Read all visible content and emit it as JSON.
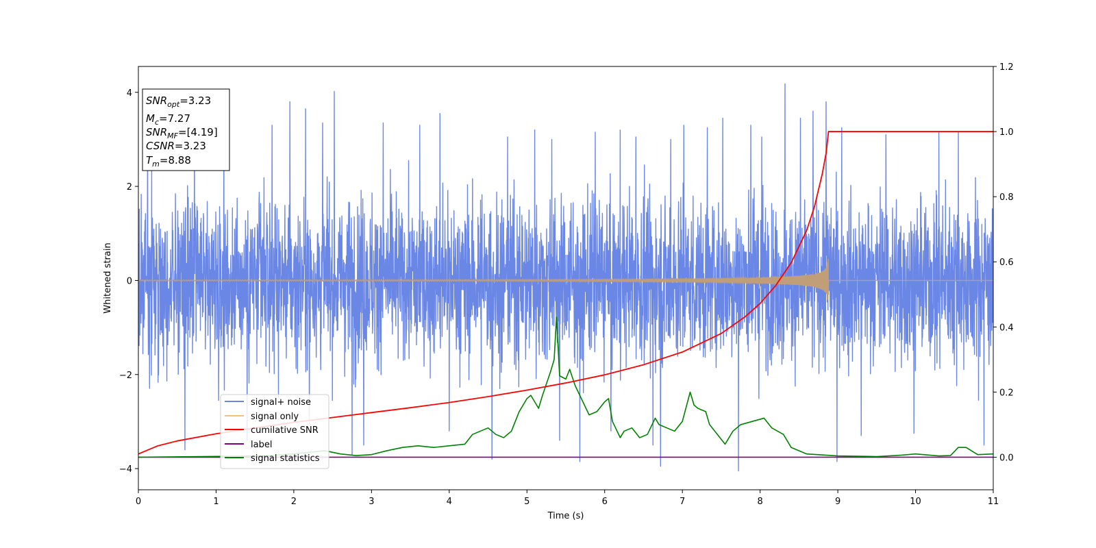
{
  "chart_data": {
    "type": "line",
    "xlabel": "Time (s)",
    "ylabel": "Whitened strain",
    "xlim": [
      0,
      11
    ],
    "ylim_left": [
      -4.45,
      4.55
    ],
    "ylim_right": [
      -0.1,
      1.2
    ],
    "x_ticks": [
      "0",
      "1",
      "2",
      "3",
      "4",
      "5",
      "6",
      "7",
      "8",
      "9",
      "10",
      "11"
    ],
    "y_left_ticks": [
      {
        "value": 4,
        "label": "4"
      },
      {
        "value": 2,
        "label": "2"
      },
      {
        "value": 0,
        "label": "0"
      },
      {
        "value": -2,
        "label": "−2"
      },
      {
        "value": -4,
        "label": "−4"
      }
    ],
    "y_right_ticks": [
      {
        "value": 1.2,
        "label": "1.2"
      },
      {
        "value": 1.0,
        "label": "1.0"
      },
      {
        "value": 0.8,
        "label": "0.8"
      },
      {
        "value": 0.6,
        "label": "0.6"
      },
      {
        "value": 0.4,
        "label": "0.4"
      },
      {
        "value": 0.2,
        "label": "0.2"
      },
      {
        "value": 0.0,
        "label": "0.0"
      }
    ],
    "grid": false,
    "legend_position": "lower-left",
    "colors": {
      "signal_noise": "#6b87e6",
      "signal_only": "#f5c078",
      "signal_overlap": "#bf9e78",
      "cumulative_snr": "#ff0000",
      "label": "#800080",
      "signal_statistics": "#008000"
    },
    "legend": [
      {
        "name": "signal+ noise",
        "color": "#6b87e6"
      },
      {
        "name": "signal only",
        "color": "#f5c078"
      },
      {
        "name": "cumilative SNR",
        "color": "#ff0000"
      },
      {
        "name": "label",
        "color": "#800080"
      },
      {
        "name": "signal statistics",
        "color": "#008000"
      }
    ],
    "annotation": {
      "snr_opt": "3.23",
      "mc": "7.27",
      "snr_mf": "[4.19]",
      "csnr": "3.23",
      "tm": "8.88"
    },
    "series": [
      {
        "name": "signal+ noise",
        "axis": "left",
        "kind": "noise band",
        "typical_range": [
          -2.2,
          2.3
        ],
        "max": 4.18,
        "min": -4.05,
        "spikes": [
          {
            "x": 0.12,
            "y": 3.3
          },
          {
            "x": 0.6,
            "y": -3.6
          },
          {
            "x": 0.72,
            "y": 3.1
          },
          {
            "x": 1.1,
            "y": 3.5
          },
          {
            "x": 1.4,
            "y": -3.4
          },
          {
            "x": 1.72,
            "y": 3.3
          },
          {
            "x": 1.95,
            "y": 3.8
          },
          {
            "x": 2.15,
            "y": 3.65
          },
          {
            "x": 2.2,
            "y": -3.1
          },
          {
            "x": 2.37,
            "y": 3.35
          },
          {
            "x": 2.52,
            "y": 4.02
          },
          {
            "x": 2.75,
            "y": -3.7
          },
          {
            "x": 2.9,
            "y": -3.5
          },
          {
            "x": 3.15,
            "y": 3.35
          },
          {
            "x": 3.62,
            "y": 3.3
          },
          {
            "x": 3.88,
            "y": 3.55
          },
          {
            "x": 4.0,
            "y": -3.2
          },
          {
            "x": 4.55,
            "y": -3.8
          },
          {
            "x": 4.75,
            "y": 3.05
          },
          {
            "x": 5.1,
            "y": 3.2
          },
          {
            "x": 5.32,
            "y": 3.0
          },
          {
            "x": 5.42,
            "y": -3.4
          },
          {
            "x": 5.68,
            "y": -3.85
          },
          {
            "x": 5.88,
            "y": 3.15
          },
          {
            "x": 6.08,
            "y": -3.2
          },
          {
            "x": 6.2,
            "y": 3.2
          },
          {
            "x": 6.4,
            "y": 3.05
          },
          {
            "x": 6.62,
            "y": -3.5
          },
          {
            "x": 6.72,
            "y": -3.95
          },
          {
            "x": 6.85,
            "y": 3.0
          },
          {
            "x": 7.02,
            "y": 3.3
          },
          {
            "x": 7.32,
            "y": 3.25
          },
          {
            "x": 7.52,
            "y": 3.45
          },
          {
            "x": 7.72,
            "y": -4.05
          },
          {
            "x": 7.88,
            "y": 3.3
          },
          {
            "x": 8.02,
            "y": 3.05
          },
          {
            "x": 8.32,
            "y": 4.18
          },
          {
            "x": 8.52,
            "y": 3.45
          },
          {
            "x": 8.68,
            "y": 3.6
          },
          {
            "x": 8.85,
            "y": 3.8
          },
          {
            "x": 8.99,
            "y": -3.85
          },
          {
            "x": 9.05,
            "y": 3.25
          },
          {
            "x": 9.3,
            "y": -3.3
          },
          {
            "x": 9.62,
            "y": 3.1
          },
          {
            "x": 9.98,
            "y": -3.25
          },
          {
            "x": 10.3,
            "y": 3.15
          },
          {
            "x": 10.55,
            "y": 3.15
          },
          {
            "x": 10.88,
            "y": -3.5
          }
        ]
      },
      {
        "name": "signal only",
        "axis": "left",
        "kind": "chirp",
        "x": [
          0,
          1,
          2,
          3,
          4,
          5,
          6,
          7,
          7.5,
          8,
          8.3,
          8.5,
          8.7,
          8.8,
          8.85,
          8.88,
          8.885,
          11
        ],
        "y_amplitude": [
          0.01,
          0.012,
          0.014,
          0.016,
          0.018,
          0.022,
          0.028,
          0.038,
          0.045,
          0.06,
          0.08,
          0.1,
          0.14,
          0.2,
          0.28,
          0.5,
          0.0,
          0.0
        ]
      },
      {
        "name": "cumilative SNR",
        "axis": "right",
        "x": [
          0,
          0.25,
          0.5,
          1,
          1.5,
          2,
          2.5,
          3,
          3.5,
          4,
          4.5,
          5,
          5.5,
          6,
          6.5,
          7,
          7.5,
          7.8,
          8,
          8.2,
          8.4,
          8.6,
          8.7,
          8.8,
          8.85,
          8.88,
          11
        ],
        "y": [
          0.01,
          0.035,
          0.05,
          0.072,
          0.09,
          0.107,
          0.122,
          0.137,
          0.152,
          0.168,
          0.186,
          0.206,
          0.228,
          0.253,
          0.284,
          0.323,
          0.38,
          0.43,
          0.472,
          0.527,
          0.597,
          0.697,
          0.77,
          0.87,
          0.935,
          1.0,
          1.0
        ]
      },
      {
        "name": "label",
        "axis": "right",
        "x": [
          0,
          11
        ],
        "y": [
          0.0,
          0.0
        ]
      },
      {
        "name": "signal statistics",
        "axis": "right",
        "x": [
          0,
          0.8,
          1.6,
          2.0,
          2.2,
          2.4,
          2.6,
          2.8,
          3.0,
          3.2,
          3.3,
          3.4,
          3.6,
          3.8,
          4.0,
          4.2,
          4.3,
          4.4,
          4.5,
          4.6,
          4.7,
          4.8,
          4.9,
          5.0,
          5.05,
          5.1,
          5.15,
          5.2,
          5.3,
          5.35,
          5.38,
          5.42,
          5.5,
          5.55,
          5.62,
          5.7,
          5.8,
          5.9,
          6.0,
          6.05,
          6.1,
          6.2,
          6.25,
          6.35,
          6.45,
          6.55,
          6.65,
          6.7,
          6.8,
          6.9,
          7.0,
          7.1,
          7.15,
          7.2,
          7.3,
          7.35,
          7.45,
          7.55,
          7.65,
          7.75,
          7.9,
          8.05,
          8.15,
          8.3,
          8.4,
          8.6,
          9.0,
          9.5,
          9.8,
          10.0,
          10.3,
          10.45,
          10.55,
          10.65,
          10.8,
          11.0
        ],
        "y": [
          0.0,
          0.002,
          0.004,
          0.01,
          0.015,
          0.02,
          0.01,
          0.005,
          0.008,
          0.02,
          0.025,
          0.03,
          0.035,
          0.03,
          0.035,
          0.04,
          0.07,
          0.08,
          0.09,
          0.07,
          0.06,
          0.08,
          0.14,
          0.18,
          0.19,
          0.17,
          0.15,
          0.19,
          0.26,
          0.3,
          0.43,
          0.25,
          0.24,
          0.27,
          0.22,
          0.18,
          0.13,
          0.14,
          0.17,
          0.18,
          0.11,
          0.06,
          0.08,
          0.09,
          0.06,
          0.07,
          0.12,
          0.1,
          0.09,
          0.08,
          0.11,
          0.2,
          0.16,
          0.15,
          0.14,
          0.1,
          0.07,
          0.04,
          0.08,
          0.1,
          0.11,
          0.12,
          0.09,
          0.07,
          0.03,
          0.01,
          0.004,
          0.002,
          0.006,
          0.01,
          0.004,
          0.005,
          0.03,
          0.03,
          0.008,
          0.01
        ]
      }
    ]
  }
}
